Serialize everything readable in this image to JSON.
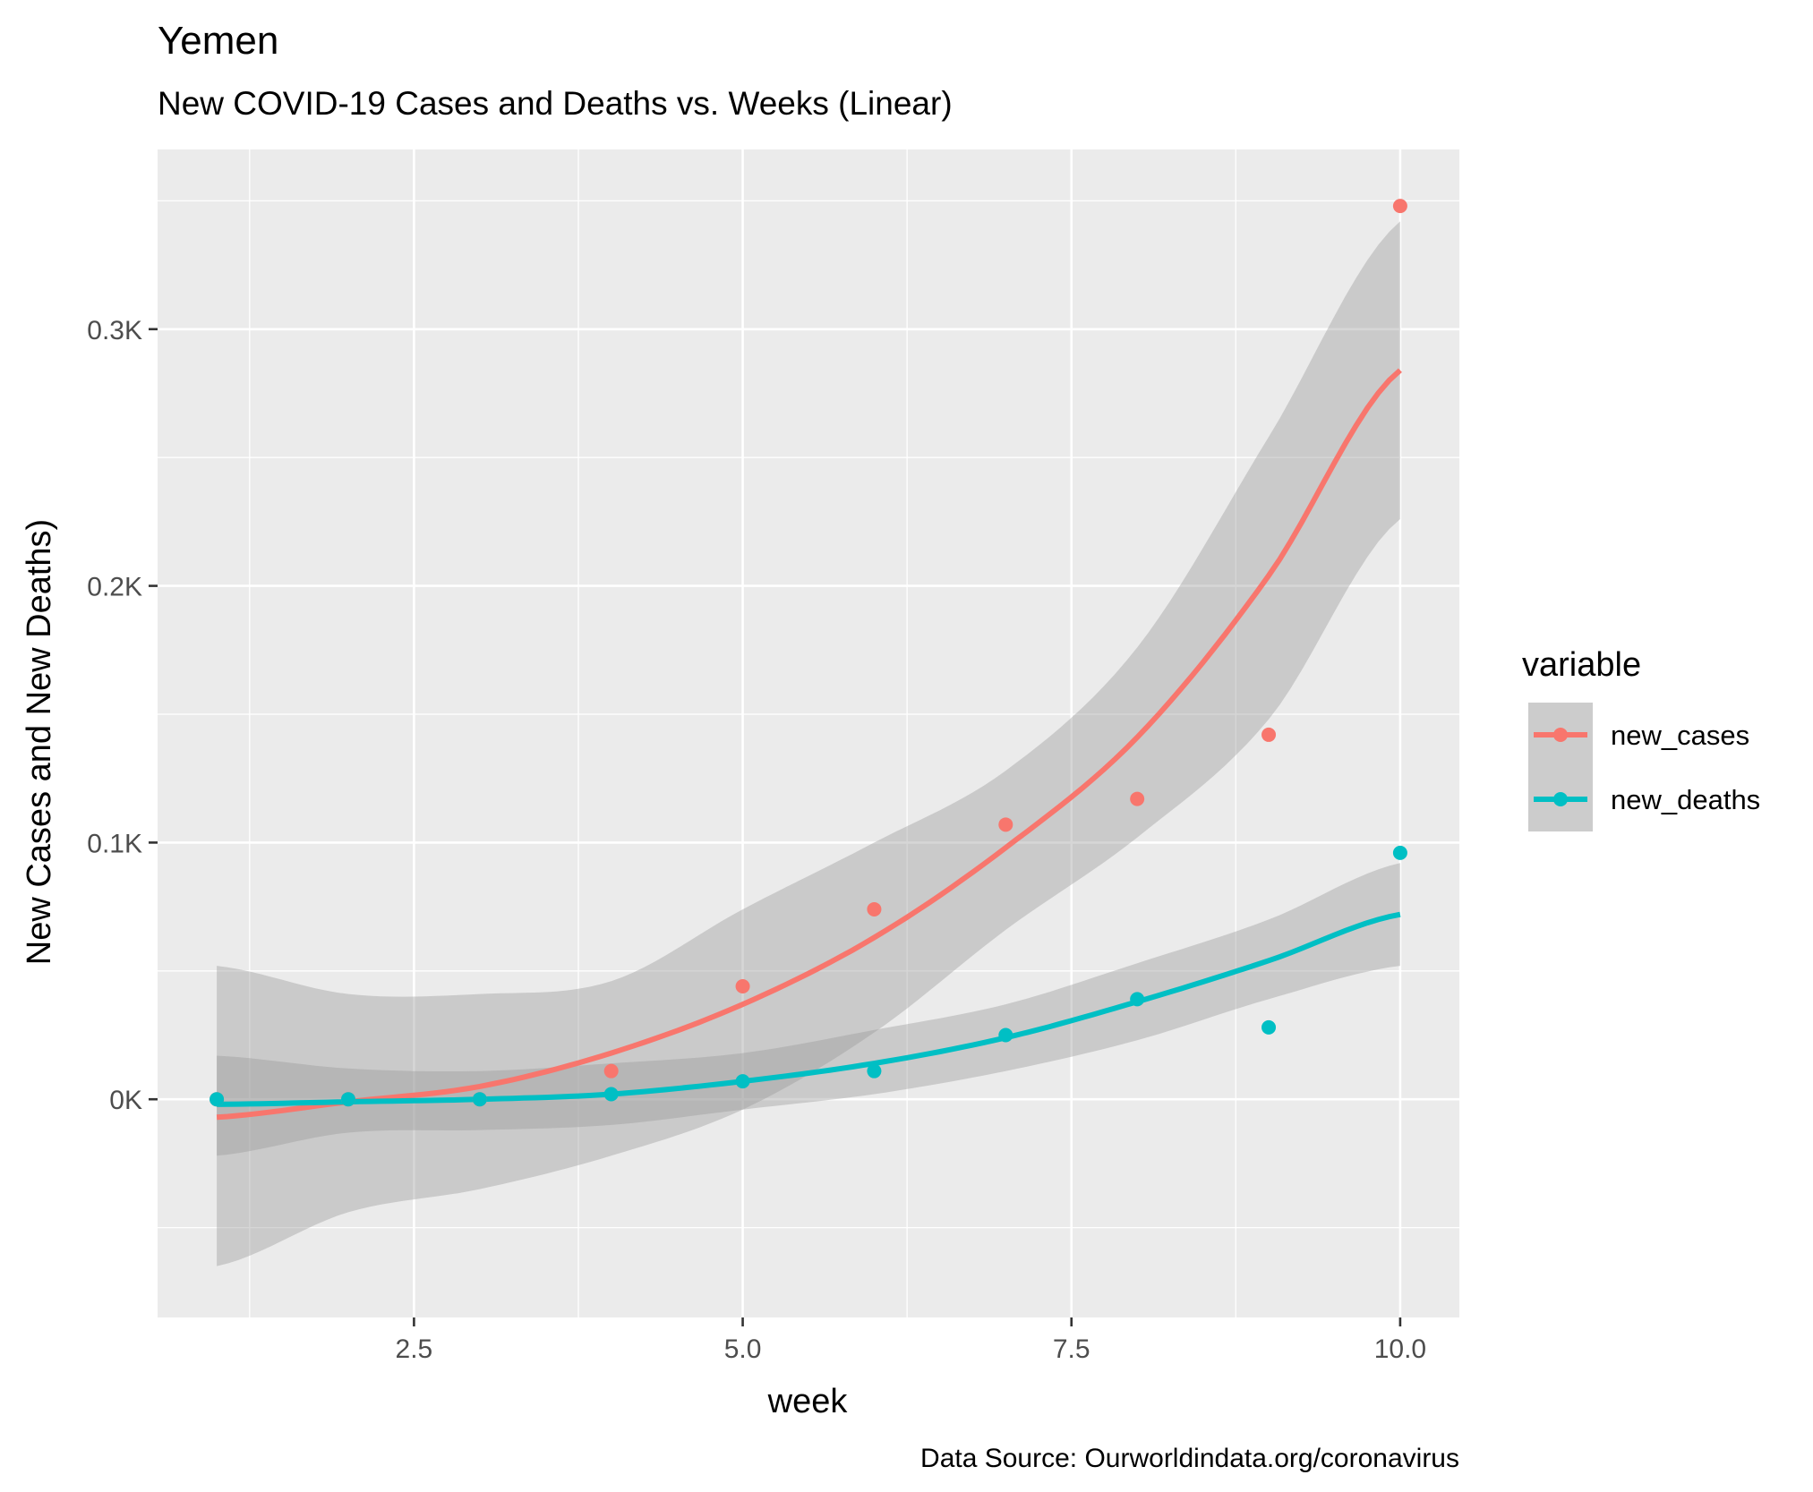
{
  "chart_data": {
    "type": "line",
    "title": "Yemen",
    "subtitle": "New COVID-19 Cases and Deaths vs. Weeks (Linear)",
    "xlabel": "week",
    "ylabel": "New Cases and New Deaths)",
    "caption": "Data Source: Ourworldindata.org/coronavirus",
    "xlim": [
      0.55,
      10.45
    ],
    "ylim": [
      -85,
      370
    ],
    "x_ticks": [
      2.5,
      5.0,
      7.5,
      10.0
    ],
    "x_tick_labels": [
      "2.5",
      "5.0",
      "7.5",
      "10.0"
    ],
    "y_ticks": [
      0,
      100,
      200,
      300
    ],
    "y_tick_labels": [
      "0K",
      "0.1K",
      "0.2K",
      "0.3K"
    ],
    "grid": true,
    "legend": {
      "title": "variable",
      "position": "right"
    },
    "x": [
      1,
      2,
      3,
      4,
      5,
      6,
      7,
      8,
      9,
      10
    ],
    "series": [
      {
        "name": "new_cases",
        "color": "#F8766D",
        "points": [
          0,
          0,
          0,
          11,
          44,
          74,
          107,
          117,
          142,
          348
        ],
        "fit": {
          "x": [
            1,
            2,
            3,
            4,
            5,
            6,
            7,
            8,
            9,
            10
          ],
          "y": [
            -7,
            -1,
            5,
            18,
            37,
            63,
            98,
            141,
            204,
            284
          ],
          "lower": [
            -65,
            -44,
            -35,
            -22,
            -4,
            26,
            66,
            102,
            148,
            226
          ],
          "upper": [
            52,
            41,
            41,
            46,
            74,
            100,
            128,
            176,
            258,
            342
          ]
        }
      },
      {
        "name": "new_deaths",
        "color": "#00BFC4",
        "points": [
          0,
          0,
          0,
          2,
          7,
          11,
          25,
          39,
          28,
          96
        ],
        "fit": {
          "x": [
            1,
            2,
            3,
            4,
            5,
            6,
            7,
            8,
            9,
            10
          ],
          "y": [
            -2,
            -1,
            0,
            2,
            7,
            14,
            24,
            38,
            54,
            72
          ],
          "lower": [
            -22,
            -13,
            -12,
            -10,
            -4,
            2,
            11,
            23,
            39,
            52
          ],
          "upper": [
            17,
            12,
            11,
            14,
            18,
            27,
            37,
            53,
            70,
            92
          ]
        }
      }
    ]
  }
}
